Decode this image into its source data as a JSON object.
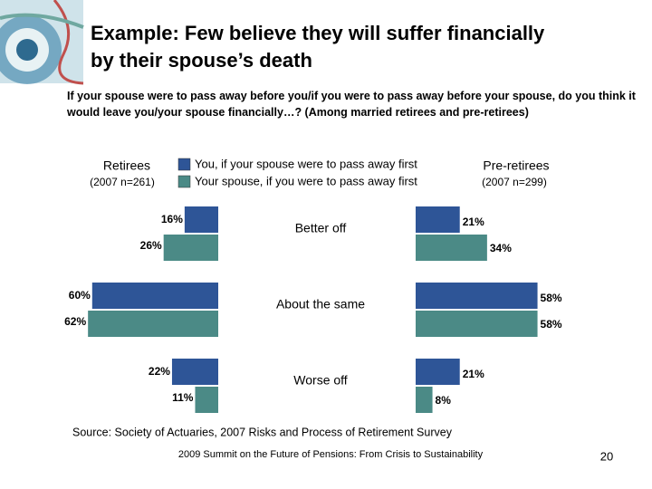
{
  "chart_data": {
    "type": "butterfly",
    "title": "Example: Few believe they will suffer financially by their spouse’s death",
    "subtitle": "If your spouse were to pass away before you/if you were to pass away before your spouse, do you think it would leave you/your spouse financially…? (Among married retirees and pre-retirees)",
    "categories": [
      "Better off",
      "About the same",
      "Worse off"
    ],
    "legend": [
      {
        "name": "You, if your spouse were to pass away first",
        "color": "#2e5597"
      },
      {
        "name": "Your spouse, if you were to pass away first",
        "color": "#4b8a86"
      }
    ],
    "panels": [
      {
        "name": "Retirees",
        "note": "(2007 n=261)",
        "side": "left",
        "series": [
          {
            "values": [
              16,
              60,
              22
            ],
            "value_labels": [
              "16%",
              "60%",
              "22%"
            ]
          },
          {
            "values": [
              26,
              62,
              11
            ],
            "value_labels": [
              "26%",
              "62%",
              "11%"
            ]
          }
        ]
      },
      {
        "name": "Pre-retirees",
        "note": "(2007 n=299)",
        "side": "right",
        "series": [
          {
            "values": [
              21,
              58,
              21
            ],
            "value_labels": [
              "21%",
              "58%",
              "21%"
            ]
          },
          {
            "values": [
              34,
              58,
              8
            ],
            "value_labels": [
              "34%",
              "58%",
              "8%"
            ]
          }
        ]
      }
    ],
    "source": "Source: Society of Actuaries, 2007 Risks and Process of Retirement Survey"
  },
  "footer": {
    "text": "2009 Summit on the Future of Pensions: From Crisis to Sustainability",
    "page": "20"
  }
}
